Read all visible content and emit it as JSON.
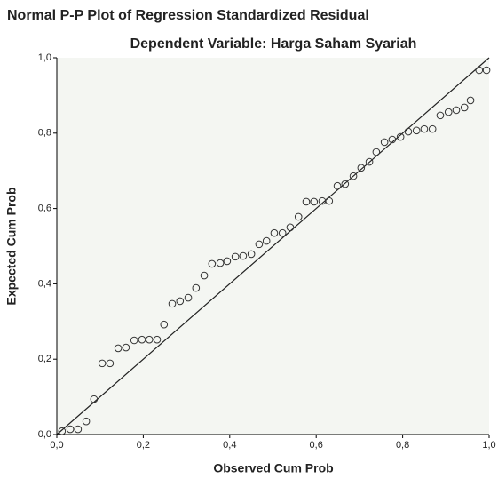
{
  "chart_data": {
    "type": "scatter",
    "title": "Normal P-P Plot of Regression Standardized Residual",
    "subtitle": "Dependent Variable: Harga Saham Syariah",
    "x_label": "Observed Cum Prob",
    "y_label": "Expected Cum Prob",
    "xlim": [
      0,
      1
    ],
    "ylim": [
      0,
      1
    ],
    "xticks": [
      {
        "value": 0,
        "label": "0,0"
      },
      {
        "value": 0.2,
        "label": "0,2"
      },
      {
        "value": 0.4,
        "label": "0,4"
      },
      {
        "value": 0.6,
        "label": "0,6"
      },
      {
        "value": 0.8,
        "label": "0,8"
      },
      {
        "value": 1,
        "label": "1,0"
      }
    ],
    "yticks": [
      {
        "value": 0,
        "label": "0,0"
      },
      {
        "value": 0.2,
        "label": "0,2"
      },
      {
        "value": 0.4,
        "label": "0,4"
      },
      {
        "value": 0.6,
        "label": "0,6"
      },
      {
        "value": 0.8,
        "label": "0,8"
      },
      {
        "value": 1,
        "label": "1,0"
      }
    ],
    "color": "#333333",
    "reference_line": true,
    "x": [
      0.012,
      0.031,
      0.049,
      0.068,
      0.086,
      0.105,
      0.123,
      0.142,
      0.16,
      0.179,
      0.197,
      0.214,
      0.232,
      0.248,
      0.267,
      0.285,
      0.304,
      0.322,
      0.341,
      0.359,
      0.378,
      0.394,
      0.413,
      0.431,
      0.45,
      0.468,
      0.485,
      0.503,
      0.522,
      0.54,
      0.559,
      0.577,
      0.595,
      0.614,
      0.63,
      0.649,
      0.667,
      0.686,
      0.704,
      0.723,
      0.739,
      0.758,
      0.776,
      0.795,
      0.813,
      0.832,
      0.85,
      0.869,
      0.887,
      0.906,
      0.924,
      0.943,
      0.957,
      0.977,
      0.994
    ],
    "values": [
      0.009,
      0.014,
      0.014,
      0.035,
      0.094,
      0.189,
      0.189,
      0.229,
      0.231,
      0.25,
      0.252,
      0.252,
      0.252,
      0.292,
      0.347,
      0.354,
      0.363,
      0.389,
      0.422,
      0.453,
      0.455,
      0.46,
      0.472,
      0.474,
      0.479,
      0.505,
      0.514,
      0.535,
      0.535,
      0.55,
      0.578,
      0.618,
      0.618,
      0.62,
      0.62,
      0.66,
      0.665,
      0.686,
      0.708,
      0.724,
      0.75,
      0.776,
      0.783,
      0.79,
      0.804,
      0.807,
      0.811,
      0.811,
      0.847,
      0.856,
      0.861,
      0.868,
      0.887,
      0.967,
      0.967
    ]
  }
}
